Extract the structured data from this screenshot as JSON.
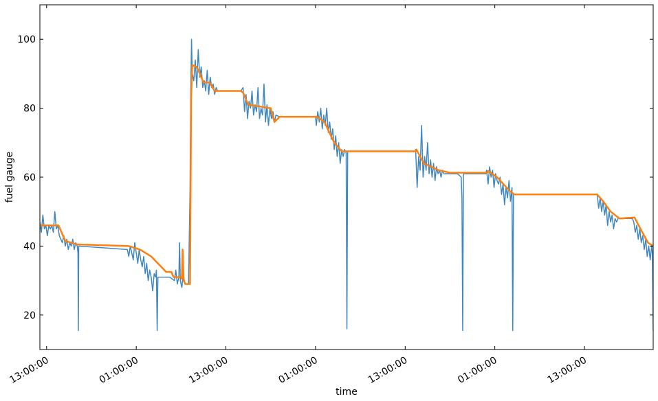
{
  "chart_data": {
    "type": "line",
    "xlabel": "time",
    "ylabel": "fuel gauge",
    "xlim": [
      -0.9,
      81.2
    ],
    "xticks": [
      {
        "value": 0,
        "label": "13:00:00"
      },
      {
        "value": 12,
        "label": "01:00:00"
      },
      {
        "value": 24,
        "label": "13:00:00"
      },
      {
        "value": 36,
        "label": "01:00:00"
      },
      {
        "value": 48,
        "label": "13:00:00"
      },
      {
        "value": 60,
        "label": "01:00:00"
      },
      {
        "value": 72,
        "label": "13:00:00"
      }
    ],
    "ylim": [
      10,
      110
    ],
    "yticks": [
      20,
      40,
      60,
      80,
      100
    ],
    "grid": false,
    "series": [
      {
        "color": "#3f87c0",
        "width": 1.5,
        "x": [
          -0.9,
          -0.7,
          -0.5,
          -0.3,
          -0.1,
          0.1,
          0.3,
          0.5,
          0.7,
          0.9,
          1.1,
          1.3,
          1.5,
          1.7,
          1.9,
          2.1,
          2.3,
          2.5,
          2.7,
          2.9,
          3.1,
          3.3,
          3.5,
          3.7,
          3.9,
          4.1,
          4.2,
          4.25,
          4.3,
          10.8,
          11,
          11.2,
          11.4,
          11.6,
          11.8,
          12,
          12.2,
          12.4,
          12.6,
          12.8,
          13,
          13.2,
          13.4,
          13.6,
          13.8,
          14,
          14.2,
          14.4,
          14.6,
          14.7,
          14.8,
          14.9,
          15.5,
          16.5,
          17.1,
          17.3,
          17.5,
          17.7,
          17.8,
          17.9,
          18.1,
          18.3,
          18.5,
          18.7,
          19.0,
          19.2,
          19.3,
          19.4,
          19.5,
          19.7,
          19.9,
          20.1,
          20.3,
          20.5,
          20.7,
          20.9,
          21.1,
          21.3,
          21.5,
          21.7,
          21.9,
          22.1,
          22.3,
          22.5,
          22.7,
          22.9,
          23.1,
          23.4,
          24,
          25,
          26,
          26.3,
          26.5,
          26.7,
          26.9,
          27.1,
          27.3,
          27.5,
          27.7,
          27.9,
          28.1,
          28.3,
          28.5,
          28.7,
          28.9,
          29.1,
          29.3,
          29.5,
          29.7,
          29.9,
          30.1,
          30.3,
          30.5,
          30.7,
          31.2,
          36.0,
          36.1,
          36.3,
          36.5,
          36.7,
          36.9,
          37.1,
          37.3,
          37.5,
          37.7,
          37.9,
          38.1,
          38.3,
          38.5,
          38.7,
          38.9,
          39.1,
          39.3,
          39.5,
          39.7,
          39.9,
          40.1,
          40.2,
          40.3,
          49.3,
          49.4,
          49.6,
          49.8,
          50,
          50.2,
          50.4,
          50.6,
          50.8,
          51,
          51.2,
          51.4,
          51.6,
          51.8,
          52,
          52.2,
          52.4,
          52.6,
          52.8,
          53,
          53.2,
          53.4,
          53.6,
          54,
          55,
          55.5,
          55.6,
          55.7,
          55.8,
          56,
          58.8,
          58.9,
          59.1,
          59.3,
          59.5,
          59.7,
          59.9,
          60.1,
          60.3,
          60.5,
          60.7,
          60.9,
          61.1,
          61.3,
          61.5,
          61.7,
          61.9,
          62.1,
          62.3,
          62.4,
          62.5,
          62.7,
          73.6,
          73.7,
          73.9,
          74.1,
          74.3,
          74.5,
          74.7,
          74.9,
          75.1,
          75.3,
          75.5,
          75.7,
          75.9,
          76.1,
          76.3,
          76.5,
          76.7,
          77,
          78,
          78.4,
          78.6,
          78.8,
          79,
          79.2,
          79.4,
          79.6,
          79.8,
          80,
          80.2,
          80.4,
          80.6,
          80.8,
          81,
          81.1,
          81.2
        ],
        "values": [
          47,
          44,
          49,
          45,
          46,
          43,
          46,
          45,
          46,
          44,
          50,
          45,
          46,
          43,
          42,
          41,
          43,
          40,
          42,
          39,
          41,
          40,
          42,
          39,
          41,
          40,
          38,
          15.5,
          40,
          39,
          37,
          40,
          38,
          36,
          41,
          38,
          35,
          39,
          36,
          34,
          37,
          32,
          35,
          30,
          33,
          31,
          27,
          32,
          31,
          33,
          15.5,
          31,
          31,
          31,
          30,
          33,
          29,
          31,
          41,
          30,
          28,
          32,
          29,
          29,
          29,
          56,
          85,
          100,
          90,
          88,
          94,
          86,
          97,
          89,
          92,
          86,
          88,
          85,
          91,
          84,
          89,
          86,
          87,
          84,
          86,
          85,
          85,
          85,
          85,
          85,
          85,
          86,
          79,
          84,
          77,
          82,
          80,
          85,
          78,
          81,
          79,
          86,
          77,
          80,
          78,
          87,
          76,
          81,
          75,
          80,
          77,
          79,
          76,
          78,
          77.5,
          77.5,
          75,
          79,
          76,
          80,
          74,
          78,
          75,
          80,
          73,
          76,
          71,
          74,
          68,
          72,
          66,
          70,
          64,
          68,
          66,
          68,
          67,
          16,
          67.5,
          67.5,
          68,
          57,
          66,
          62,
          75,
          60,
          66,
          62,
          70,
          61,
          65,
          60,
          64,
          59,
          63,
          61,
          62,
          60,
          62,
          61,
          61,
          61,
          61,
          61,
          60,
          54,
          15.5,
          61,
          61,
          61,
          62,
          58,
          63,
          60,
          62,
          57,
          61,
          59,
          58,
          60,
          55,
          58,
          52,
          57,
          54,
          59,
          53,
          57,
          15.5,
          55,
          55,
          55,
          55,
          51,
          54,
          50,
          53,
          49,
          52,
          46,
          50,
          47,
          49,
          45,
          48,
          47,
          48,
          48,
          48,
          48,
          48,
          47,
          44,
          46,
          42,
          45,
          41,
          43,
          39,
          42,
          37,
          40,
          36,
          40,
          38,
          15.5
        ]
      },
      {
        "color": "#ff7f0e",
        "width": 2.5,
        "x": [
          -0.9,
          1.6,
          2.5,
          4,
          11,
          12.5,
          14,
          16,
          16.7,
          17,
          18,
          18.1,
          18.2,
          18.35,
          18.6,
          19.2,
          19.35,
          19.5,
          20.1,
          20.5,
          21,
          21.8,
          22.5,
          26,
          26.3,
          27,
          30,
          30.5,
          31.2,
          36.2,
          37.2,
          38.5,
          39.5,
          49.4,
          49.5,
          50.5,
          52.5,
          54,
          59,
          59.1,
          60.3,
          62,
          62.6,
          73.7,
          74.5,
          75.5,
          76.7,
          78.7,
          79.5,
          80.5,
          81.2
        ],
        "values": [
          46,
          46,
          41.5,
          40.5,
          40,
          39,
          37,
          32.5,
          32.5,
          31,
          31,
          30.5,
          39,
          30,
          29,
          29,
          83,
          92.5,
          92,
          90,
          87.5,
          87.5,
          85,
          85,
          84.5,
          81,
          80,
          76,
          77.5,
          77.5,
          76,
          70,
          67.5,
          67.5,
          68,
          64,
          62,
          61.3,
          61.3,
          61.8,
          60,
          56,
          55,
          55,
          53,
          50,
          48,
          48.3,
          45,
          41,
          40
        ]
      }
    ]
  }
}
